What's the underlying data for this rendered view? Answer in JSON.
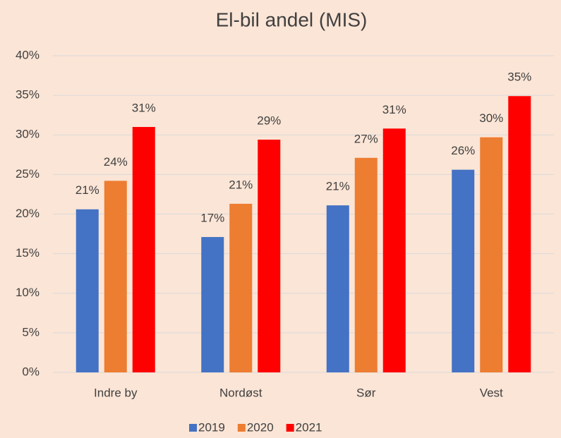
{
  "chart_data": {
    "type": "bar",
    "title": "El-bil andel (MIS)",
    "categories": [
      "Indre by",
      "Nordøst",
      "Sør",
      "Vest"
    ],
    "series": [
      {
        "name": "2019",
        "color": "#4472c4",
        "values": [
          20.6,
          17.1,
          21.1,
          25.6
        ],
        "value_labels": [
          "21%",
          "17%",
          "21%",
          "26%"
        ]
      },
      {
        "name": "2020",
        "color": "#ed7d31",
        "values": [
          24.2,
          21.3,
          27.1,
          29.7
        ],
        "value_labels": [
          "24%",
          "21%",
          "27%",
          "30%"
        ]
      },
      {
        "name": "2021",
        "color": "#ff0000",
        "values": [
          31.0,
          29.4,
          30.8,
          34.9
        ],
        "value_labels": [
          "31%",
          "29%",
          "31%",
          "35%"
        ]
      }
    ],
    "ylim": [
      0,
      40
    ],
    "yticks": [
      {
        "value": 0,
        "label": "0%"
      },
      {
        "value": 5,
        "label": "5%"
      },
      {
        "value": 10,
        "label": "10%"
      },
      {
        "value": 15,
        "label": "15%"
      },
      {
        "value": 20,
        "label": "20%"
      },
      {
        "value": 25,
        "label": "25%"
      },
      {
        "value": 30,
        "label": "30%"
      },
      {
        "value": 35,
        "label": "35%"
      },
      {
        "value": 40,
        "label": "40%"
      }
    ],
    "grid": true,
    "legend": "bottom"
  }
}
